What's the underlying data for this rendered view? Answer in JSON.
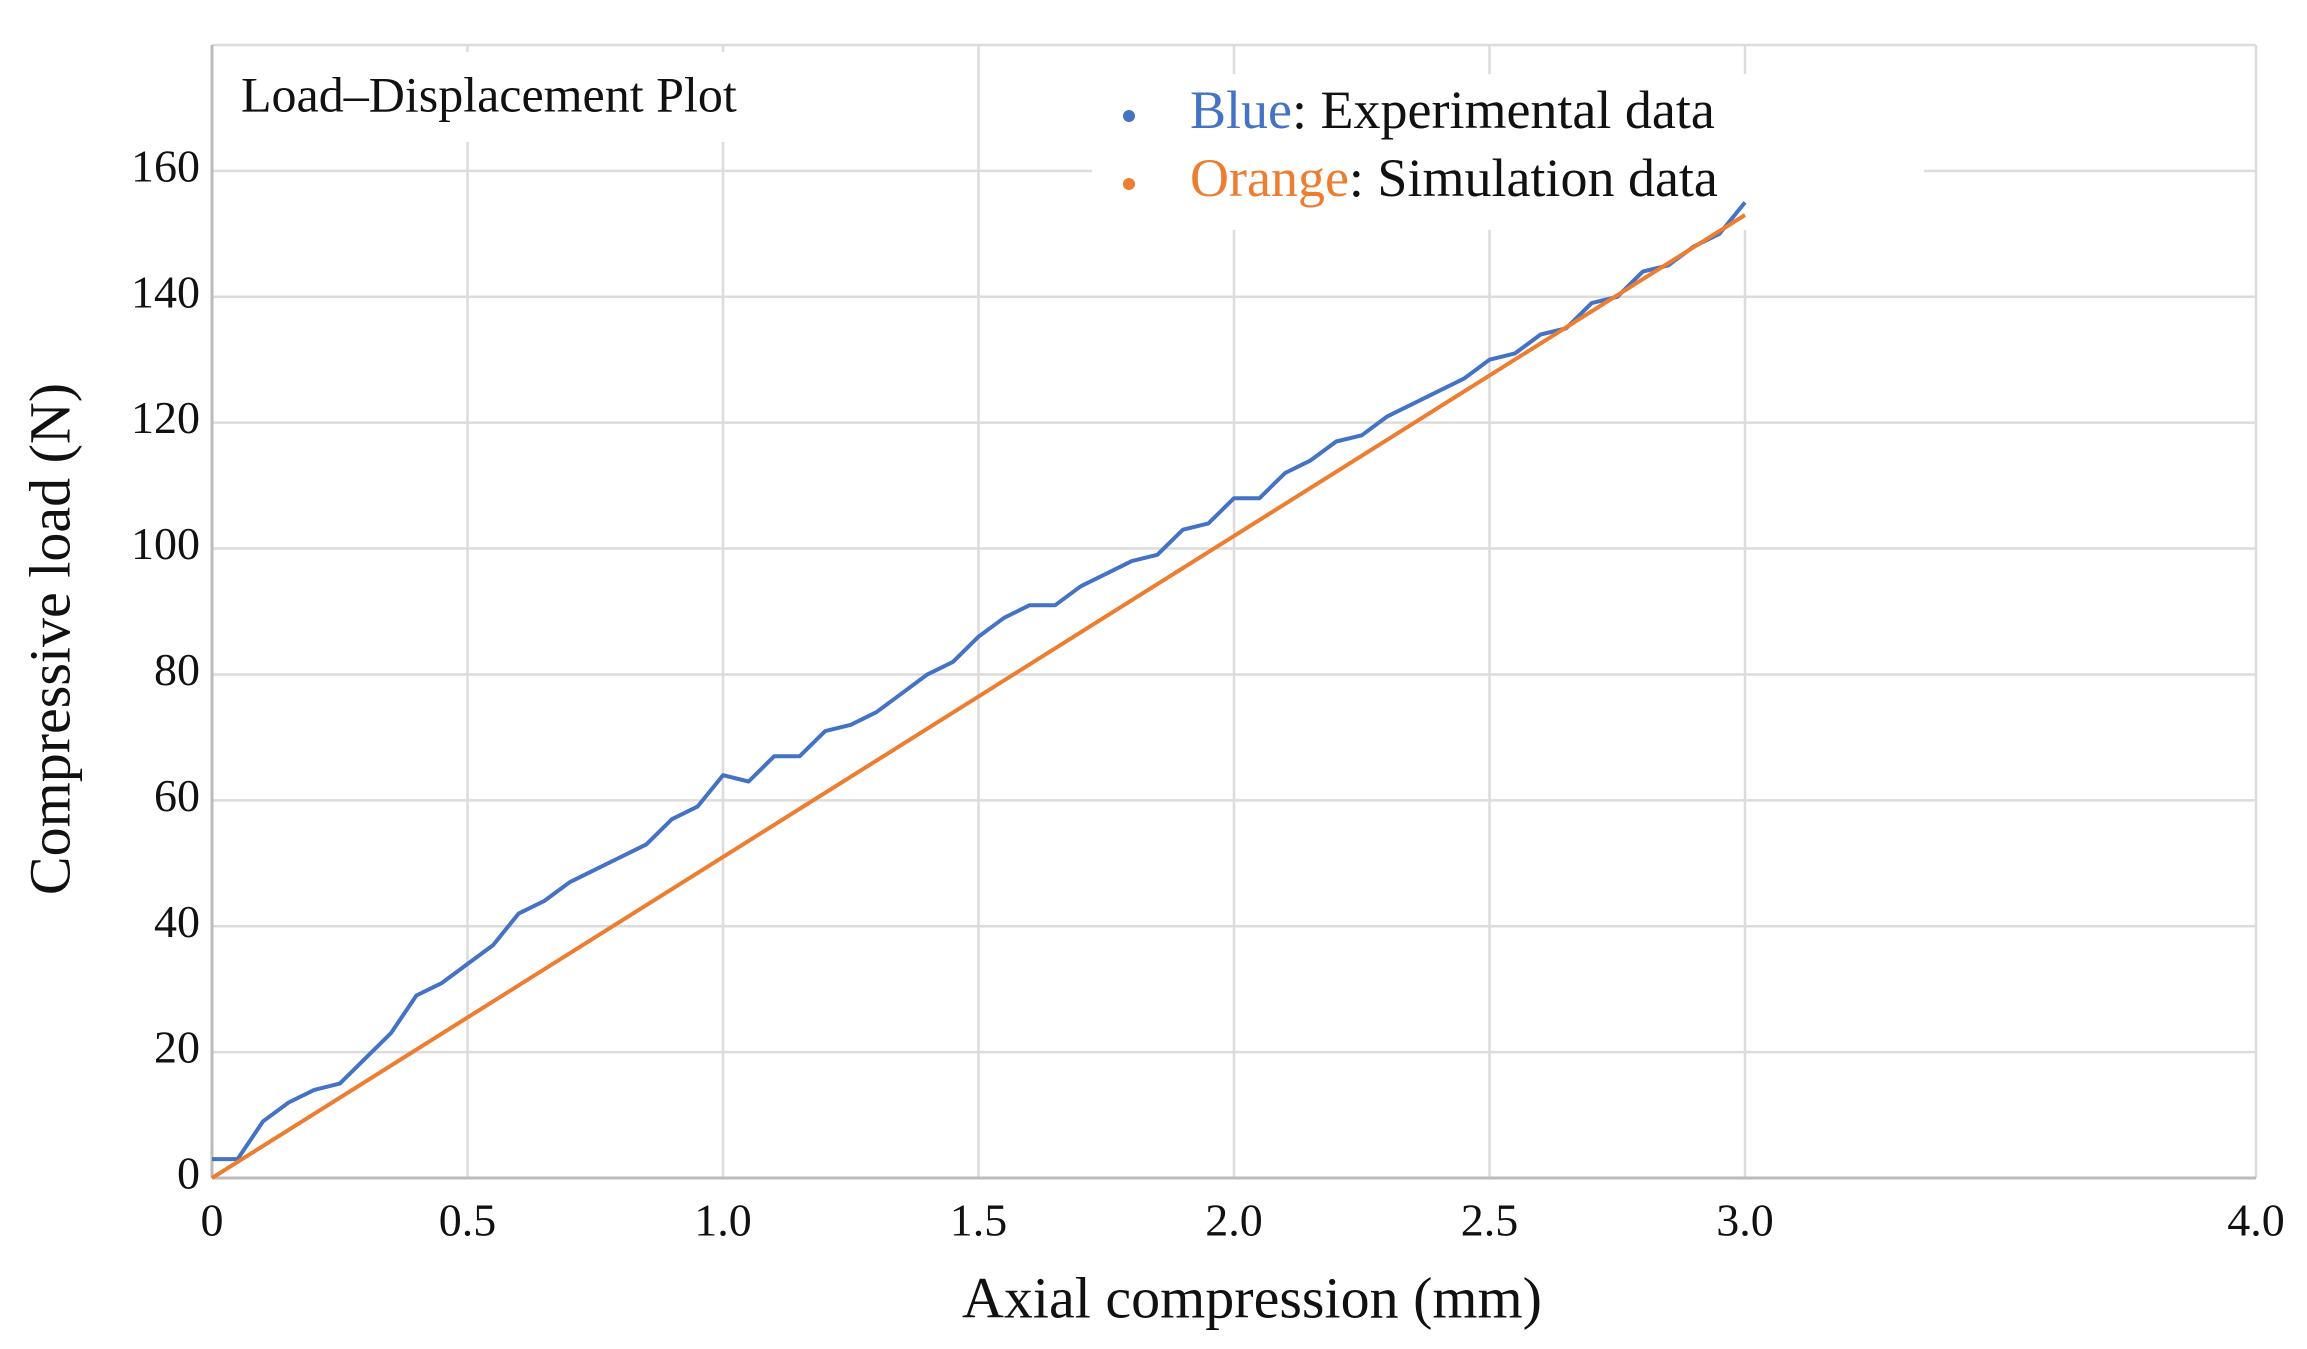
{
  "chart_data": {
    "type": "line",
    "title": "Load–Displacement Plot",
    "x_label": "Axial compression (mm)",
    "y_label": "Compressive load (N)",
    "xlim": [
      0,
      4
    ],
    "ylim": [
      0,
      180
    ],
    "xticks": [
      0,
      0.5,
      {
        "value": 1,
        "label": "1.0"
      },
      1.5,
      {
        "value": 2,
        "label": "2.0"
      },
      2.5,
      {
        "value": 3,
        "label": "3.0"
      },
      {
        "value": 4,
        "label": "4.0"
      }
    ],
    "yticks": [
      0,
      20,
      40,
      60,
      80,
      100,
      120,
      140,
      160
    ],
    "grid": true,
    "legend": "top-center",
    "series": [
      {
        "name": "Blue: Experimental data",
        "color": "#4472c4",
        "x": [
          0,
          0.05,
          0.1,
          0.15,
          0.2,
          0.25,
          0.3,
          0.35,
          0.4,
          0.45,
          0.5,
          0.55,
          0.6,
          0.65,
          0.7,
          0.75,
          0.8,
          0.85,
          0.9,
          0.95,
          1.0,
          1.05,
          1.1,
          1.15,
          1.2,
          1.25,
          1.3,
          1.35,
          1.4,
          1.45,
          1.5,
          1.55,
          1.6,
          1.65,
          1.7,
          1.75,
          1.8,
          1.85,
          1.9,
          1.95,
          2.0,
          2.05,
          2.1,
          2.15,
          2.2,
          2.25,
          2.3,
          2.35,
          2.4,
          2.45,
          2.5,
          2.55,
          2.6,
          2.65,
          2.7,
          2.75,
          2.8,
          2.85,
          2.9,
          2.95,
          3.0
        ],
        "values": [
          3,
          3,
          9,
          12,
          14,
          15,
          19,
          23,
          29,
          31,
          34,
          37,
          42,
          44,
          47,
          49,
          51,
          53,
          57,
          59,
          64,
          63,
          67,
          67,
          71,
          72,
          74,
          77,
          80,
          82,
          86,
          89,
          91,
          91,
          94,
          96,
          98,
          99,
          103,
          104,
          108,
          108,
          112,
          114,
          117,
          118,
          121,
          123,
          125,
          127,
          130,
          131,
          134,
          135,
          139,
          140,
          144,
          145,
          148,
          150,
          155
        ]
      },
      {
        "name": "Orange: Simulation data",
        "color": "#ed7d31",
        "x": [
          0,
          3.0
        ],
        "values": [
          0,
          153
        ]
      }
    ]
  }
}
